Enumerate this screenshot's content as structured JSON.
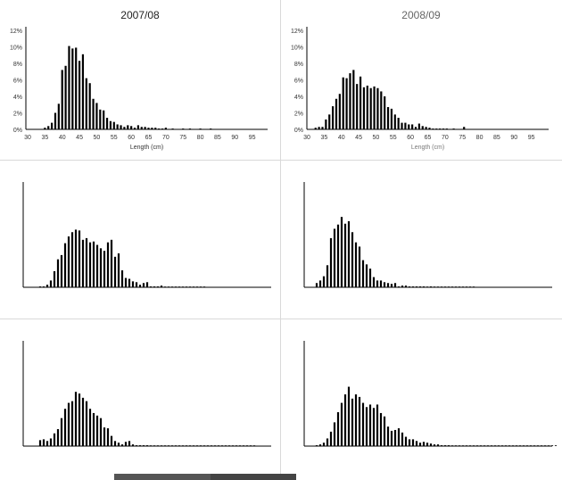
{
  "chart_data": [
    {
      "type": "bar",
      "title": "2007/08",
      "xlabel": "Length (cm)",
      "xticks": [
        "30",
        "35",
        "40",
        "45",
        "50",
        "55",
        "60",
        "65",
        "70",
        "75",
        "80",
        "85",
        "90",
        "95"
      ],
      "yticks": [
        "0%",
        "2%",
        "4%",
        "6%",
        "8%",
        "10%",
        "12%"
      ],
      "xlim": [
        30,
        100
      ],
      "ylim": [
        0,
        12
      ],
      "x": [
        35,
        36,
        37,
        38,
        39,
        40,
        41,
        42,
        43,
        44,
        45,
        46,
        47,
        48,
        49,
        50,
        51,
        52,
        53,
        54,
        55,
        56,
        57,
        58,
        59,
        60,
        61,
        62,
        63,
        64,
        65,
        66,
        67,
        68,
        69,
        70,
        72,
        75,
        77,
        80,
        83
      ],
      "values": [
        0.2,
        0.4,
        0.8,
        2.0,
        3.1,
        7.2,
        7.7,
        10.1,
        9.8,
        9.9,
        8.3,
        9.1,
        6.2,
        5.6,
        3.7,
        3.2,
        2.4,
        2.3,
        1.4,
        1.0,
        0.9,
        0.6,
        0.5,
        0.3,
        0.5,
        0.4,
        0.2,
        0.5,
        0.3,
        0.3,
        0.2,
        0.2,
        0.2,
        0.1,
        0.1,
        0.2,
        0.1,
        0.1,
        0.1,
        0.1,
        0.1
      ]
    },
    {
      "type": "bar",
      "title": "2008/09",
      "xlabel": "Length (cm)",
      "xticks": [
        "30",
        "35",
        "40",
        "45",
        "50",
        "55",
        "60",
        "65",
        "70",
        "75",
        "80",
        "85",
        "90",
        "95"
      ],
      "yticks": [
        "0%",
        "2%",
        "4%",
        "6%",
        "8%",
        "10%",
        "12%"
      ],
      "xlim": [
        30,
        100
      ],
      "ylim": [
        0,
        12
      ],
      "x": [
        32,
        33,
        34,
        35,
        36,
        37,
        38,
        39,
        40,
        41,
        42,
        43,
        44,
        45,
        46,
        47,
        48,
        49,
        50,
        51,
        52,
        53,
        54,
        55,
        56,
        57,
        58,
        59,
        60,
        61,
        62,
        63,
        64,
        65,
        66,
        67,
        68,
        69,
        70,
        72,
        75
      ],
      "values": [
        0.2,
        0.3,
        0.3,
        1.2,
        1.8,
        2.8,
        3.7,
        4.3,
        6.3,
        6.2,
        6.8,
        7.2,
        5.5,
        6.4,
        5.1,
        5.3,
        5.0,
        5.2,
        5.0,
        4.6,
        4.0,
        2.7,
        2.5,
        1.8,
        1.4,
        0.8,
        0.8,
        0.6,
        0.6,
        0.3,
        0.7,
        0.4,
        0.3,
        0.2,
        0.1,
        0.1,
        0.1,
        0.1,
        0.1,
        0.1,
        0.3
      ]
    },
    {
      "type": "bar",
      "ylim": [
        0,
        12
      ],
      "values": [
        0.1,
        0.1,
        0.3,
        0.8,
        1.9,
        3.3,
        3.8,
        5.2,
        6.0,
        6.5,
        6.8,
        6.7,
        5.6,
        5.8,
        5.3,
        5.4,
        5.0,
        4.6,
        4.3,
        5.3,
        5.6,
        3.6,
        4.0,
        2.0,
        1.1,
        1.0,
        0.7,
        0.6,
        0.3,
        0.5,
        0.6,
        0.1,
        0.1,
        0.1,
        0.2,
        0.05,
        0.05,
        0.05,
        0.05,
        0.05,
        0.05,
        0.05,
        0.05,
        0.05,
        0.05,
        0.05,
        0.05
      ]
    },
    {
      "type": "bar",
      "ylim": [
        0,
        12
      ],
      "values": [
        0.5,
        0.8,
        1.3,
        2.6,
        5.8,
        6.9,
        7.4,
        8.3,
        7.5,
        7.8,
        6.5,
        5.3,
        4.8,
        3.2,
        2.7,
        2.2,
        1.2,
        0.8,
        0.8,
        0.6,
        0.5,
        0.4,
        0.5,
        0.1,
        0.2,
        0.2,
        0.1,
        0.1,
        0.1,
        0.1,
        0.1,
        0.05,
        0.1,
        0.05,
        0.05,
        0.05,
        0.05,
        0.05,
        0.05,
        0.05,
        0.05,
        0.05,
        0.05,
        0.05,
        0.05
      ]
    },
    {
      "type": "bar",
      "ylim": [
        0,
        12
      ],
      "values": [
        0.7,
        0.8,
        0.6,
        0.9,
        1.5,
        2.0,
        3.3,
        4.4,
        5.1,
        5.3,
        6.4,
        6.2,
        5.7,
        5.3,
        4.4,
        3.9,
        3.6,
        3.3,
        2.2,
        2.1,
        1.2,
        0.6,
        0.4,
        0.2,
        0.5,
        0.6,
        0.2,
        0.1,
        0.1,
        0.1,
        0.1,
        0.05,
        0.05,
        0.05,
        0.05,
        0.05,
        0.05,
        0.05,
        0.05,
        0.05,
        0.05,
        0.05,
        0.05,
        0.05,
        0.05,
        0.05,
        0.05,
        0.05,
        0.05,
        0.05,
        0.05,
        0.05,
        0.05,
        0.05,
        0.05,
        0.05,
        0.05,
        0.05,
        0.05,
        0.05,
        0.05
      ]
    },
    {
      "type": "bar",
      "ylim": [
        0,
        12
      ],
      "values": [
        0.1,
        0.2,
        0.4,
        0.9,
        1.7,
        2.8,
        4.0,
        5.1,
        6.1,
        7.0,
        5.6,
        6.1,
        5.8,
        5.1,
        4.6,
        4.9,
        4.5,
        4.9,
        3.9,
        3.5,
        2.3,
        1.8,
        1.9,
        2.1,
        1.6,
        1.1,
        0.8,
        0.8,
        0.6,
        0.4,
        0.5,
        0.4,
        0.3,
        0.2,
        0.2,
        0.1,
        0.1,
        0.1,
        0.05,
        0.05,
        0.05,
        0.05,
        0.05,
        0.05,
        0.05,
        0.05,
        0.05,
        0.05,
        0.05,
        0.05,
        0.05,
        0.05,
        0.05,
        0.05,
        0.05,
        0.05,
        0.05,
        0.05,
        0.05,
        0.05,
        0.05,
        0.05,
        0.05,
        0.05,
        0.05,
        0.05,
        0.05,
        0.05
      ]
    }
  ]
}
